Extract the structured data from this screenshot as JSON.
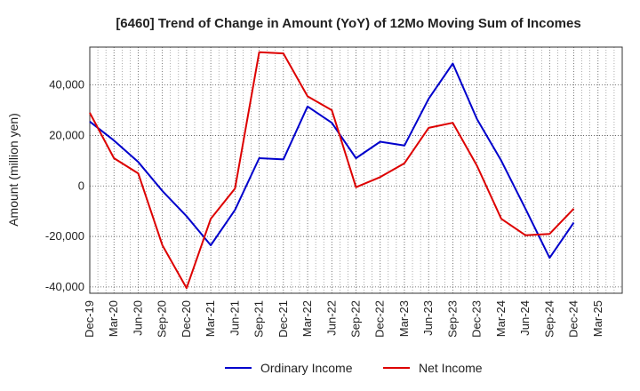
{
  "chart_data": {
    "type": "line",
    "title": "[6460]  Trend of Change in Amount (YoY) of 12Mo Moving Sum of Incomes",
    "ylabel": "Amount (million yen)",
    "xlabel": "",
    "x": [
      "Dec-19",
      "Mar-20",
      "Jun-20",
      "Sep-20",
      "Dec-20",
      "Mar-21",
      "Jun-21",
      "Sep-21",
      "Dec-21",
      "Mar-22",
      "Jun-22",
      "Sep-22",
      "Dec-22",
      "Mar-23",
      "Jun-23",
      "Sep-23",
      "Dec-23",
      "Mar-24",
      "Jun-24",
      "Sep-24",
      "Dec-24",
      "Mar-25"
    ],
    "y_ticks": [
      -40000,
      -20000,
      0,
      20000,
      40000
    ],
    "y_tick_labels": [
      "-40,000",
      "-20,000",
      "0",
      "20,000",
      "40,000"
    ],
    "ylim": [
      -42500,
      55000
    ],
    "grid": true,
    "legend_position": "bottom",
    "series": [
      {
        "name": "Ordinary Income",
        "color": "#0000cc",
        "values": [
          25500,
          18000,
          9500,
          -2000,
          -12000,
          -23500,
          -9500,
          11000,
          10500,
          31500,
          25000,
          11000,
          17500,
          16000,
          34500,
          48500,
          26500,
          10000,
          -9000,
          -28500,
          -14500,
          null
        ]
      },
      {
        "name": "Net Income",
        "color": "#dd0000",
        "values": [
          29000,
          11000,
          5000,
          -23500,
          -40500,
          -13000,
          -1000,
          53000,
          52500,
          35500,
          30000,
          -500,
          3500,
          9000,
          23000,
          25000,
          8000,
          -13000,
          -19500,
          -19000,
          -9000,
          null
        ]
      }
    ]
  }
}
